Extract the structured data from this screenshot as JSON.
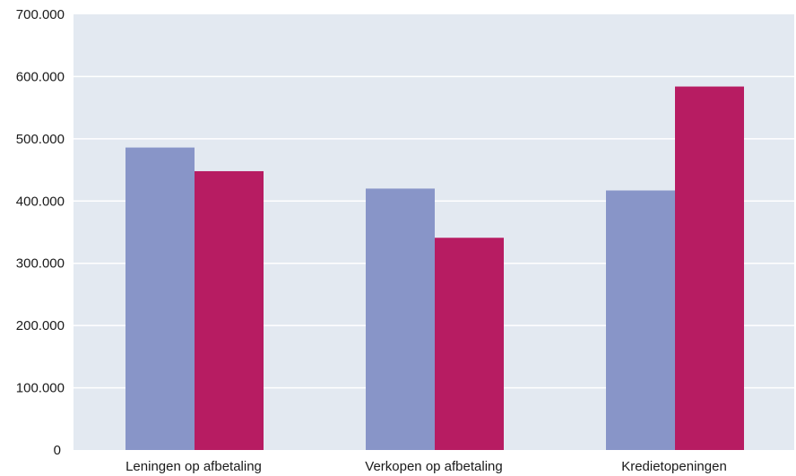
{
  "chart_data": {
    "type": "bar",
    "categories": [
      "Leningen op afbetaling",
      "Verkopen op afbetaling",
      "Kredietopeningen"
    ],
    "series": [
      {
        "values": [
          486000,
          420000,
          417000
        ],
        "color": "#8895c8"
      },
      {
        "values": [
          448000,
          341000,
          584000
        ],
        "color": "#b71c62"
      }
    ],
    "yticks": [
      "0",
      "100.000",
      "200.000",
      "300.000",
      "400.000",
      "500.000",
      "600.000",
      "700.000"
    ],
    "ylim": [
      0,
      700000
    ],
    "grid": true,
    "legend": "none",
    "plot_background": "#e3e9f1",
    "gridline_color": "#ffffff"
  }
}
